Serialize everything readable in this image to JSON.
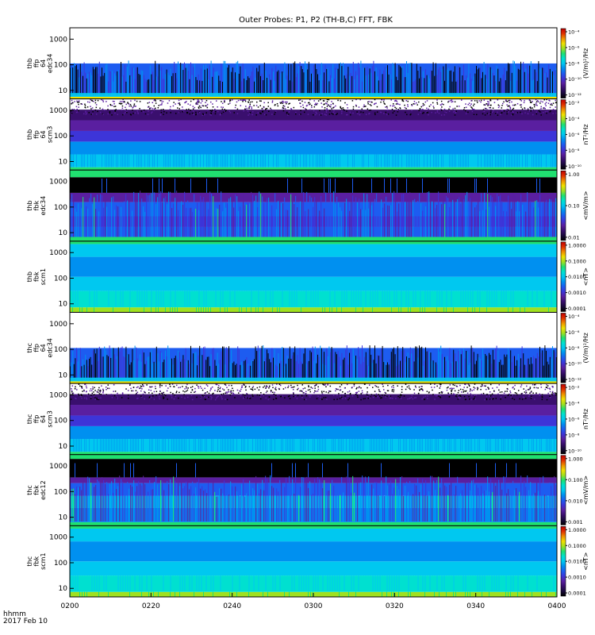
{
  "title": "Outer Probes: P1, P2 (TH-B,C) FFT, FBK",
  "footer": {
    "line1": "hhmm",
    "line2": "2017 Feb 10"
  },
  "colors": {
    "palette": [
      "#000000",
      "#1a0a3c",
      "#3a0f6e",
      "#5a1fa0",
      "#3d35d8",
      "#1d5cf0",
      "#0090f0",
      "#00c8f0",
      "#00e0d0",
      "#20e070",
      "#a0e020",
      "#f0e000",
      "#f09000",
      "#e03000",
      "#c00000"
    ],
    "frame": "#000000",
    "text": "#000000"
  },
  "chart_data": {
    "type": "heatmap",
    "title": "Outer Probes: P1, P2 (TH-B,C) FFT, FBK",
    "x_tick_labels": [
      "0200",
      "0220",
      "0240",
      "0300",
      "0320",
      "0340",
      "0400"
    ],
    "x_range": [
      "0200",
      "0400"
    ],
    "date": "2017 Feb 10",
    "panels": [
      {
        "id": "thb_ffp_64_edc34",
        "ylabel": [
          "thb",
          "ffp",
          "64",
          "edc34"
        ],
        "yscale": "log",
        "ytick_labels": [
          "10",
          "100",
          "1000"
        ],
        "colorbar_label": "(V/m)²/Hz",
        "colorbar_tick_labels": [
          "10⁻⁴",
          "10⁻⁶",
          "10⁻⁸",
          "10⁻¹⁰",
          "10⁻¹²"
        ]
      },
      {
        "id": "thb_ffp_64_scm3",
        "ylabel": [
          "thb",
          "ffp",
          "64",
          "scm3"
        ],
        "yscale": "log",
        "ytick_labels": [
          "10",
          "100",
          "1000"
        ],
        "colorbar_label": "nT²/Hz",
        "colorbar_tick_labels": [
          "10⁻²",
          "10⁻⁴",
          "10⁻⁶",
          "10⁻⁸",
          "10⁻¹⁰"
        ]
      },
      {
        "id": "thb_fbk_edc34",
        "ylabel": [
          "thb",
          "fbk",
          "edc34"
        ],
        "yscale": "log",
        "ytick_labels": [
          "10",
          "100",
          "1000"
        ],
        "colorbar_label": "<mV/m>",
        "colorbar_tick_labels": [
          "1.00",
          "0.10",
          "0.01"
        ]
      },
      {
        "id": "thb_fbk_scm1",
        "ylabel": [
          "thb",
          "fbk",
          "scm1"
        ],
        "yscale": "log",
        "ytick_labels": [
          "10",
          "100",
          "1000"
        ],
        "colorbar_label": "<nT>",
        "colorbar_tick_labels": [
          "1.0000",
          "0.1000",
          "0.0100",
          "0.0010",
          "0.0001"
        ]
      },
      {
        "id": "thc_ffp_64_edc34",
        "ylabel": [
          "thc",
          "ffp",
          "64",
          "edc34"
        ],
        "yscale": "log",
        "ytick_labels": [
          "10",
          "100",
          "1000"
        ],
        "colorbar_label": "(V/m)²/Hz",
        "colorbar_tick_labels": [
          "10⁻⁴",
          "10⁻⁶",
          "10⁻⁸",
          "10⁻¹⁰",
          "10⁻¹²"
        ]
      },
      {
        "id": "thc_ffp_64_scm3",
        "ylabel": [
          "thc",
          "ffp",
          "64",
          "scm3"
        ],
        "yscale": "log",
        "ytick_labels": [
          "10",
          "100",
          "1000"
        ],
        "colorbar_label": "nT²/Hz",
        "colorbar_tick_labels": [
          "10⁻²",
          "10⁻⁴",
          "10⁻⁶",
          "10⁻⁸",
          "10⁻¹⁰"
        ]
      },
      {
        "id": "thc_fbk_edc12",
        "ylabel": [
          "thc",
          "fbk",
          "edc12"
        ],
        "yscale": "log",
        "ytick_labels": [
          "10",
          "100",
          "1000"
        ],
        "colorbar_label": "<mV/m>",
        "colorbar_tick_labels": [
          "1.000",
          "0.100",
          "0.010",
          "0.001"
        ]
      },
      {
        "id": "thc_fbk_scm1",
        "ylabel": [
          "thc",
          "fbk",
          "scm1"
        ],
        "yscale": "log",
        "ytick_labels": [
          "10",
          "100",
          "1000"
        ],
        "colorbar_label": "<nT>",
        "colorbar_tick_labels": [
          "1.0000",
          "0.1000",
          "0.0100",
          "0.0010",
          "0.0001"
        ]
      }
    ]
  }
}
